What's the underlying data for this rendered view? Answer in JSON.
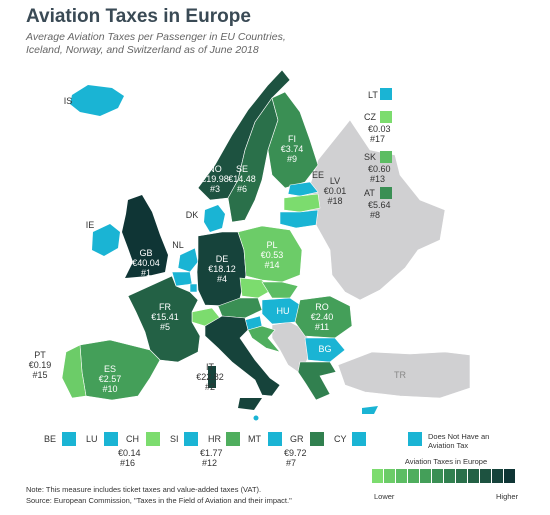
{
  "title": "Aviation Taxes in Europe",
  "subtitle": "Average Aviation Taxes per Passenger in EU Countries, Iceland, Norway, and Switzerland as of June 2018",
  "colors": {
    "no_tax": "#1ab4d4",
    "non_eu": "#d0d0d2",
    "eu_no_data": "#e6e6e8",
    "sea": "#ffffff",
    "scale": [
      "#7cdc6e",
      "#6ccc68",
      "#5cbd63",
      "#4fae5e",
      "#449f59",
      "#3a8f54",
      "#31804f",
      "#2a704a",
      "#236145",
      "#1d5240",
      "#16433b",
      "#0f3535"
    ]
  },
  "countries": [
    {
      "code": "GB",
      "value": "€40.04",
      "rank": "#1",
      "color": "#0f3535"
    },
    {
      "code": "IT",
      "value": "€22.82",
      "rank": "#2",
      "color": "#16433b"
    },
    {
      "code": "NO",
      "value": "€19.98",
      "rank": "#3",
      "color": "#1d5240"
    },
    {
      "code": "DE",
      "value": "€18.12",
      "rank": "#4",
      "color": "#16433b"
    },
    {
      "code": "FR",
      "value": "€15.41",
      "rank": "#5",
      "color": "#236145"
    },
    {
      "code": "SE",
      "value": "€14.48",
      "rank": "#6",
      "color": "#2a704a"
    },
    {
      "code": "GR",
      "value": "€9.72",
      "rank": "#7",
      "color": "#31804f"
    },
    {
      "code": "AT",
      "value": "€5.64",
      "rank": "#8",
      "color": "#3a8f54"
    },
    {
      "code": "FI",
      "value": "€3.74",
      "rank": "#9",
      "color": "#3a8f54"
    },
    {
      "code": "ES",
      "value": "€2.57",
      "rank": "#10",
      "color": "#449f59"
    },
    {
      "code": "RO",
      "value": "€2.40",
      "rank": "#11",
      "color": "#449f59"
    },
    {
      "code": "HR",
      "value": "€1.77",
      "rank": "#12",
      "color": "#4fae5e"
    },
    {
      "code": "SK",
      "value": "€0.60",
      "rank": "#13",
      "color": "#5cbd63"
    },
    {
      "code": "PL",
      "value": "€0.53",
      "rank": "#14",
      "color": "#6ccc68"
    },
    {
      "code": "PT",
      "value": "€0.19",
      "rank": "#15",
      "color": "#6ccc68"
    },
    {
      "code": "CH",
      "value": "€0.14",
      "rank": "#16",
      "color": "#7cdc6e"
    },
    {
      "code": "CZ",
      "value": "€0.03",
      "rank": "#17",
      "color": "#7cdc6e"
    },
    {
      "code": "LV",
      "value": "€0.01",
      "rank": "#18",
      "color": "#7cdc6e"
    },
    {
      "code": "IS",
      "value": "",
      "rank": "",
      "color": "#1ab4d4"
    },
    {
      "code": "IE",
      "value": "",
      "rank": "",
      "color": "#1ab4d4"
    },
    {
      "code": "DK",
      "value": "",
      "rank": "",
      "color": "#1ab4d4"
    },
    {
      "code": "NL",
      "value": "",
      "rank": "",
      "color": "#1ab4d4"
    },
    {
      "code": "EE",
      "value": "",
      "rank": "",
      "color": "#1ab4d4"
    },
    {
      "code": "LT",
      "value": "",
      "rank": "",
      "color": "#1ab4d4"
    },
    {
      "code": "HU",
      "value": "",
      "rank": "",
      "color": "#1ab4d4"
    },
    {
      "code": "BG",
      "value": "",
      "rank": "",
      "color": "#1ab4d4"
    },
    {
      "code": "BE",
      "value": "",
      "rank": "",
      "color": "#1ab4d4"
    },
    {
      "code": "LU",
      "value": "",
      "rank": "",
      "color": "#1ab4d4"
    },
    {
      "code": "SI",
      "value": "",
      "rank": "",
      "color": "#1ab4d4"
    },
    {
      "code": "MT",
      "value": "",
      "rank": "",
      "color": "#1ab4d4"
    },
    {
      "code": "CY",
      "value": "",
      "rank": "",
      "color": "#1ab4d4"
    },
    {
      "code": "TR",
      "value": "",
      "rank": "",
      "color": "#d0d0d2"
    }
  ],
  "legend": {
    "no_tax_label": "Does Not Have an Aviation Tax",
    "scale_title": "Aviation Taxes in Europe",
    "lower": "Lower",
    "higher": "Higher"
  },
  "notes": {
    "note": "Note: This measure includes ticket taxes and value-added taxes (VAT).",
    "source": "Source: European Commission, \"Taxes in the Field of Aviation and their impact.\""
  }
}
